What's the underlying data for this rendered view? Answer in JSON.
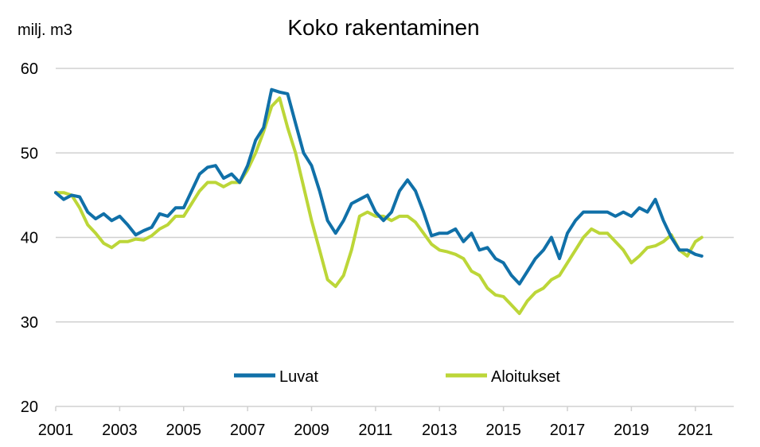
{
  "chart_data": {
    "type": "line",
    "title": "Koko rakentaminen",
    "ylabel": "milj. m3",
    "xlabel": "",
    "xlim": [
      2001,
      2022.2
    ],
    "ylim": [
      20,
      60
    ],
    "yticks": [
      20,
      30,
      40,
      50,
      60
    ],
    "xticks": [
      2001,
      2003,
      2005,
      2007,
      2009,
      2011,
      2013,
      2015,
      2017,
      2019,
      2021
    ],
    "grid": "horizontal",
    "legend": "bottom-center",
    "colors": {
      "Luvat": "#1070a8",
      "Aloitukset": "#bcd638",
      "grid": "#d0d0d0"
    },
    "series": [
      {
        "name": "Luvat",
        "x": [
          2001.0,
          2001.25,
          2001.5,
          2001.75,
          2002.0,
          2002.25,
          2002.5,
          2002.75,
          2003.0,
          2003.25,
          2003.5,
          2003.75,
          2004.0,
          2004.25,
          2004.5,
          2004.75,
          2005.0,
          2005.25,
          2005.5,
          2005.75,
          2006.0,
          2006.25,
          2006.5,
          2006.75,
          2007.0,
          2007.25,
          2007.5,
          2007.75,
          2008.0,
          2008.25,
          2008.5,
          2008.75,
          2009.0,
          2009.25,
          2009.5,
          2009.75,
          2010.0,
          2010.25,
          2010.5,
          2010.75,
          2011.0,
          2011.25,
          2011.5,
          2011.75,
          2012.0,
          2012.25,
          2012.5,
          2012.75,
          2013.0,
          2013.25,
          2013.5,
          2013.75,
          2014.0,
          2014.25,
          2014.5,
          2014.75,
          2015.0,
          2015.25,
          2015.5,
          2015.75,
          2016.0,
          2016.25,
          2016.5,
          2016.75,
          2017.0,
          2017.25,
          2017.5,
          2017.75,
          2018.0,
          2018.25,
          2018.5,
          2018.75,
          2019.0,
          2019.25,
          2019.5,
          2019.75,
          2020.0,
          2020.25,
          2020.5,
          2020.75,
          2021.0,
          2021.2
        ],
        "values": [
          45.3,
          44.5,
          45.0,
          44.8,
          43.0,
          42.2,
          42.8,
          42.0,
          42.5,
          41.5,
          40.3,
          40.8,
          41.2,
          42.8,
          42.5,
          43.5,
          43.5,
          45.5,
          47.5,
          48.3,
          48.5,
          47.0,
          47.5,
          46.5,
          48.5,
          51.5,
          53.0,
          57.5,
          57.2,
          57.0,
          53.5,
          50.0,
          48.5,
          45.5,
          42.0,
          40.5,
          42.0,
          44.0,
          44.5,
          45.0,
          43.0,
          42.0,
          43.0,
          45.5,
          46.8,
          45.5,
          43.0,
          40.2,
          40.5,
          40.5,
          41.0,
          39.5,
          40.5,
          38.5,
          38.8,
          37.5,
          37.0,
          35.5,
          34.5,
          36.0,
          37.5,
          38.5,
          40.0,
          37.5,
          40.5,
          42.0,
          43.0,
          43.0,
          43.0,
          43.0,
          42.5,
          43.0,
          42.5,
          43.5,
          43.0,
          44.5,
          42.0,
          40.0,
          38.5,
          38.5,
          38.0,
          37.8
        ]
      },
      {
        "name": "Aloitukset",
        "x": [
          2001.0,
          2001.25,
          2001.5,
          2001.75,
          2002.0,
          2002.25,
          2002.5,
          2002.75,
          2003.0,
          2003.25,
          2003.5,
          2003.75,
          2004.0,
          2004.25,
          2004.5,
          2004.75,
          2005.0,
          2005.25,
          2005.5,
          2005.75,
          2006.0,
          2006.25,
          2006.5,
          2006.75,
          2007.0,
          2007.25,
          2007.5,
          2007.75,
          2008.0,
          2008.25,
          2008.5,
          2008.75,
          2009.0,
          2009.25,
          2009.5,
          2009.75,
          2010.0,
          2010.25,
          2010.5,
          2010.75,
          2011.0,
          2011.25,
          2011.5,
          2011.75,
          2012.0,
          2012.25,
          2012.5,
          2012.75,
          2013.0,
          2013.25,
          2013.5,
          2013.75,
          2014.0,
          2014.25,
          2014.5,
          2014.75,
          2015.0,
          2015.25,
          2015.5,
          2015.75,
          2016.0,
          2016.25,
          2016.5,
          2016.75,
          2017.0,
          2017.25,
          2017.5,
          2017.75,
          2018.0,
          2018.25,
          2018.5,
          2018.75,
          2019.0,
          2019.25,
          2019.5,
          2019.75,
          2020.0,
          2020.25,
          2020.5,
          2020.75,
          2021.0,
          2021.2
        ],
        "values": [
          45.3,
          45.3,
          45.0,
          43.5,
          41.5,
          40.5,
          39.3,
          38.8,
          39.5,
          39.5,
          39.8,
          39.7,
          40.2,
          41.0,
          41.5,
          42.5,
          42.5,
          44.0,
          45.5,
          46.5,
          46.5,
          46.0,
          46.5,
          46.5,
          48.0,
          50.0,
          52.5,
          55.5,
          56.5,
          53.0,
          50.0,
          46.0,
          42.0,
          38.5,
          35.0,
          34.2,
          35.5,
          38.5,
          42.5,
          43.0,
          42.5,
          42.5,
          42.0,
          42.5,
          42.5,
          41.8,
          40.5,
          39.2,
          38.5,
          38.3,
          38.0,
          37.5,
          36.0,
          35.5,
          34.0,
          33.2,
          33.0,
          32.0,
          31.0,
          32.5,
          33.5,
          34.0,
          35.0,
          35.5,
          37.0,
          38.5,
          40.0,
          41.0,
          40.5,
          40.5,
          39.5,
          38.5,
          37.0,
          37.8,
          38.8,
          39.0,
          39.5,
          40.3,
          38.5,
          37.8,
          39.5,
          40.0
        ]
      }
    ]
  }
}
